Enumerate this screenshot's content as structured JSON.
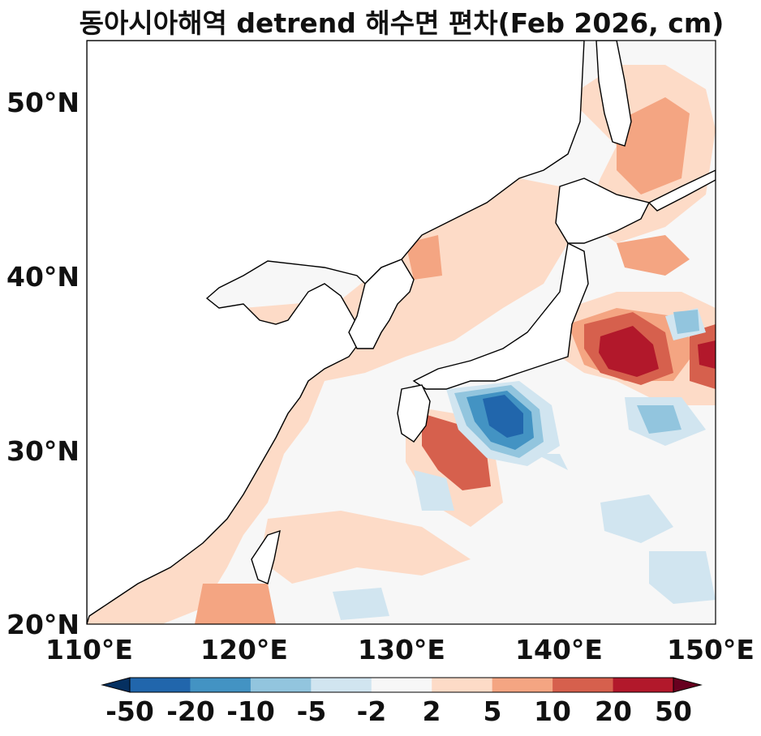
{
  "title": "동아시아해역 detrend 해수면 편차(Feb 2026, cm)",
  "map": {
    "lat_ticks": [
      "50°N",
      "40°N",
      "30°N",
      "20°N"
    ],
    "lon_ticks": [
      "110°E",
      "120°E",
      "130°E",
      "140°E",
      "150°E"
    ],
    "extent": {
      "lon": [
        110,
        150
      ],
      "lat": [
        20,
        53.5
      ]
    }
  },
  "colorbar": {
    "labels": [
      "-50",
      "-20",
      "-10",
      "-5",
      "-2",
      "2",
      "5",
      "10",
      "20",
      "50"
    ],
    "colors": [
      "#2166ac",
      "#4393c3",
      "#92c5de",
      "#d1e5f0",
      "#f7f7f7",
      "#fddbc7",
      "#f4a582",
      "#d6604d",
      "#b2182b"
    ],
    "under_color": "#053061",
    "over_color": "#67001f"
  }
}
